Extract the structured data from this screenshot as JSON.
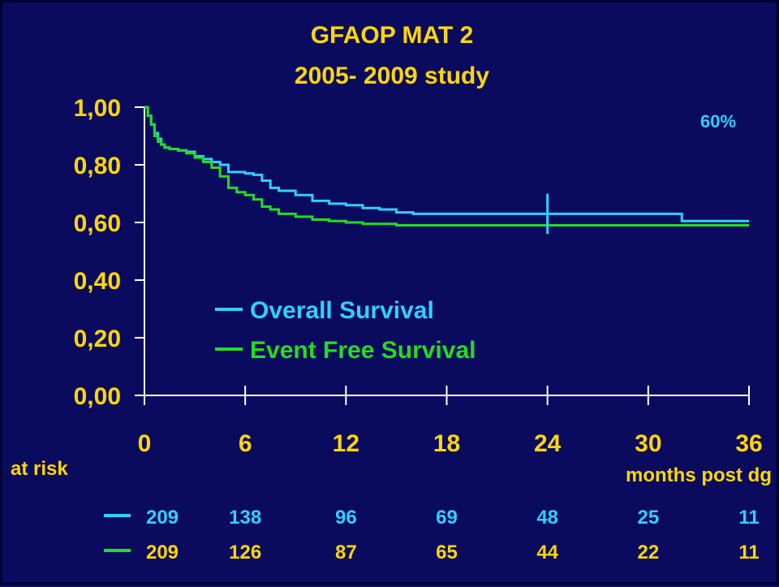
{
  "slide": {
    "title_line1": "GFAOP MAT 2",
    "title_line2": "2005- 2009 study"
  },
  "chart_data": {
    "type": "line",
    "title": "GFAOP MAT 2",
    "subtitle": "2005- 2009 study",
    "xlabel": "months post dg",
    "ylabel": "",
    "xlim": [
      0,
      36
    ],
    "ylim": [
      0,
      1
    ],
    "x_ticks": [
      "0",
      "6",
      "12",
      "18",
      "24",
      "30",
      "36"
    ],
    "y_ticks": [
      "0,00",
      "0,20",
      "0,40",
      "0,60",
      "0,80",
      "1,00"
    ],
    "grid": false,
    "legend": "center-left",
    "annotation": "60%",
    "marker_x": 24,
    "series": [
      {
        "name": "Overall Survival",
        "color": "#2fd0ff",
        "step": true,
        "x": [
          0,
          0.2,
          0.4,
          0.6,
          0.8,
          1.0,
          1.2,
          1.5,
          2,
          2.5,
          3,
          3.5,
          4,
          4.5,
          5,
          6,
          6.5,
          7,
          7.5,
          8,
          9,
          10,
          11,
          12,
          13,
          14,
          15,
          16,
          18,
          20,
          22,
          24,
          26,
          28,
          30,
          31,
          32,
          33,
          36
        ],
        "y": [
          1.0,
          0.97,
          0.94,
          0.91,
          0.89,
          0.87,
          0.86,
          0.855,
          0.85,
          0.845,
          0.83,
          0.82,
          0.81,
          0.8,
          0.775,
          0.77,
          0.765,
          0.745,
          0.72,
          0.71,
          0.695,
          0.675,
          0.665,
          0.66,
          0.65,
          0.645,
          0.635,
          0.63,
          0.63,
          0.63,
          0.63,
          0.63,
          0.63,
          0.63,
          0.63,
          0.63,
          0.605,
          0.605,
          0.605
        ]
      },
      {
        "name": "Event Free Survival",
        "color": "#22dd22",
        "step": true,
        "x": [
          0,
          0.2,
          0.4,
          0.6,
          0.8,
          1.0,
          1.2,
          1.5,
          2,
          2.5,
          3,
          3.5,
          4,
          4.5,
          5,
          5.5,
          6,
          6.5,
          7,
          7.5,
          8,
          9,
          10,
          11,
          12,
          13,
          14,
          15,
          16,
          18,
          20,
          22,
          24,
          26,
          28,
          30,
          32,
          34,
          36
        ],
        "y": [
          1.0,
          0.97,
          0.94,
          0.9,
          0.88,
          0.87,
          0.86,
          0.855,
          0.85,
          0.84,
          0.825,
          0.81,
          0.79,
          0.76,
          0.72,
          0.705,
          0.695,
          0.68,
          0.655,
          0.645,
          0.63,
          0.62,
          0.61,
          0.605,
          0.6,
          0.595,
          0.595,
          0.59,
          0.59,
          0.59,
          0.59,
          0.59,
          0.59,
          0.59,
          0.59,
          0.59,
          0.59,
          0.59,
          0.59
        ]
      }
    ],
    "at_risk": {
      "label": "at risk",
      "times": [
        0,
        6,
        12,
        18,
        24,
        30,
        36
      ],
      "rows": [
        {
          "series": "Overall Survival",
          "color": "#2fd0ff",
          "values": [
            "209",
            "138",
            "96",
            "69",
            "48",
            "25",
            "11"
          ]
        },
        {
          "series": "Event Free Survival",
          "color": "#ffd700",
          "values": [
            "209",
            "126",
            "87",
            "65",
            "44",
            "22",
            "11"
          ]
        }
      ]
    }
  }
}
